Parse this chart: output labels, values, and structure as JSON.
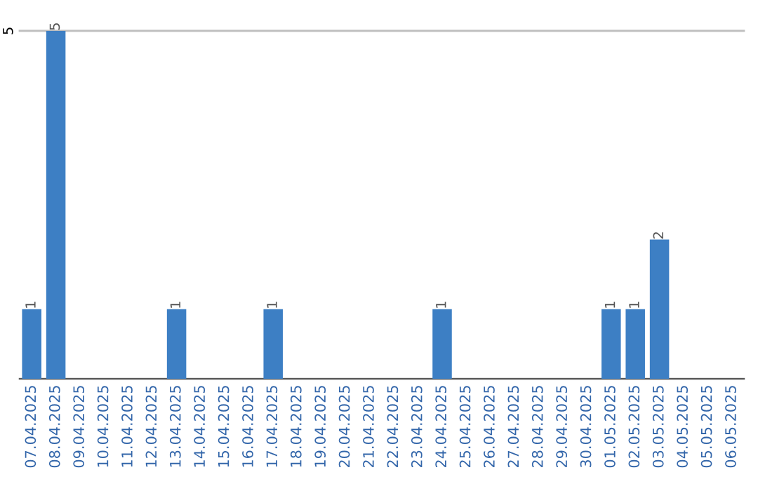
{
  "chart_data": {
    "type": "bar",
    "categories": [
      "07.04.2025",
      "08.04.2025",
      "09.04.2025",
      "10.04.2025",
      "11.04.2025",
      "12.04.2025",
      "13.04.2025",
      "14.04.2025",
      "15.04.2025",
      "16.04.2025",
      "17.04.2025",
      "18.04.2025",
      "19.04.2025",
      "20.04.2025",
      "21.04.2025",
      "22.04.2025",
      "23.04.2025",
      "24.04.2025",
      "25.04.2025",
      "26.04.2025",
      "27.04.2025",
      "28.04.2025",
      "29.04.2025",
      "30.04.2025",
      "01.05.2025",
      "02.05.2025",
      "03.05.2025",
      "04.05.2025",
      "05.05.2025",
      "06.05.2025"
    ],
    "values": [
      1,
      5,
      0,
      0,
      0,
      0,
      1,
      0,
      0,
      0,
      1,
      0,
      0,
      0,
      0,
      0,
      0,
      1,
      0,
      0,
      0,
      0,
      0,
      0,
      1,
      1,
      2,
      0,
      0,
      0
    ],
    "value_labels": [
      "1",
      "5",
      null,
      null,
      null,
      null,
      "1",
      null,
      null,
      null,
      "1",
      null,
      null,
      null,
      null,
      null,
      null,
      "1",
      null,
      null,
      null,
      null,
      null,
      null,
      "1",
      "1",
      "2",
      null,
      null,
      null
    ],
    "color": "#3d7fc4",
    "ylim": [
      0,
      5
    ],
    "yticks": [
      {
        "value": 0,
        "label": null
      },
      5
    ],
    "grid": "y"
  }
}
